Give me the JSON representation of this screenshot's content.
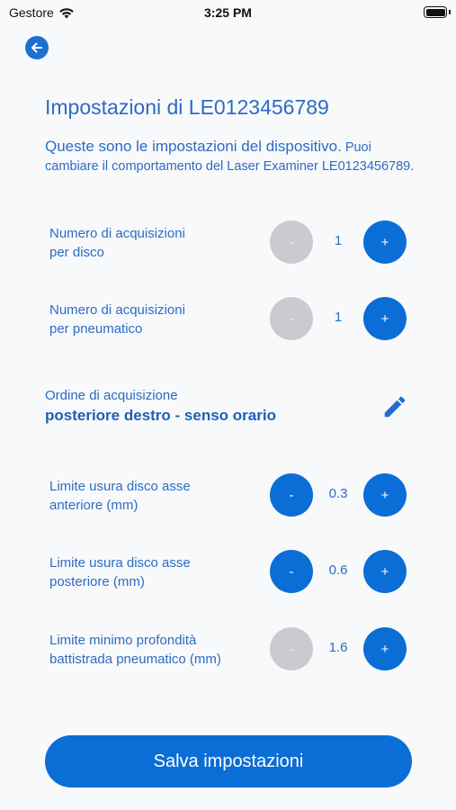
{
  "status_bar": {
    "carrier": "Gestore",
    "time": "3:25 PM"
  },
  "title": "Impostazioni di LE0123456789",
  "intro": {
    "lead": "Queste sono le impostazioni del dispositivo.",
    "rest": " Puoi cambiare il comportamento del Laser Examiner LE0123456789."
  },
  "settings": [
    {
      "label_line1": "Numero di acquisizioni",
      "label_line2": "per disco",
      "value": "1",
      "minus": "-",
      "plus": "+",
      "minus_enabled": false
    },
    {
      "label_line1": "Numero di acquisizioni",
      "label_line2": "per pneumatico",
      "value": "1",
      "minus": "-",
      "plus": "+",
      "minus_enabled": false
    },
    {
      "label_line1": "Limite usura disco asse",
      "label_line2": "anteriore (mm)",
      "value": "0.3",
      "minus": "-",
      "plus": "+",
      "minus_enabled": true
    },
    {
      "label_line1": "Limite usura disco asse",
      "label_line2": "posteriore (mm)",
      "value": "0.6",
      "minus": "-",
      "plus": "+",
      "minus_enabled": true
    },
    {
      "label_line1": "Limite minimo profondità",
      "label_line2": "battistrada pneumatico (mm)",
      "value": "1.6",
      "minus": "-",
      "plus": "+",
      "minus_enabled": false
    }
  ],
  "order": {
    "label": "Ordine di acquisizione",
    "value": "posteriore destro - senso orario"
  },
  "save_button": "Salva impostazioni",
  "icons": {
    "back": "arrow-left-icon",
    "edit": "pencil-icon",
    "wifi": "wifi-icon",
    "battery": "battery-icon"
  },
  "colors": {
    "accent": "#0a6ed6",
    "text": "#2d6bc4",
    "disabled": "#c9cbce",
    "background": "#f8f9fb"
  }
}
